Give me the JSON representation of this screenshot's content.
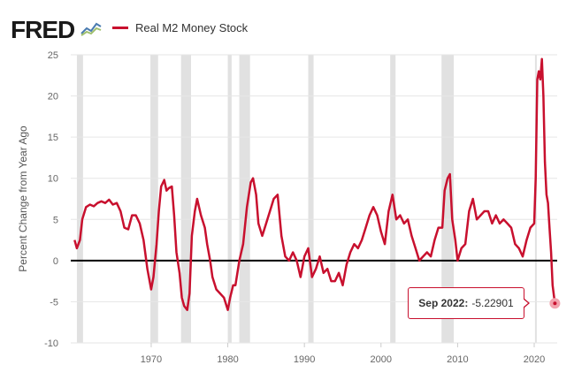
{
  "header": {
    "logo_text": "FRED"
  },
  "legend": {
    "label": "Real M2 Money Stock",
    "color": "#c8102e"
  },
  "tooltip": {
    "date": "Sep 2022:",
    "value": "-5.22901"
  },
  "chart_data": {
    "type": "line",
    "ylabel": "Percent Change from Year Ago",
    "xlim": [
      1959.5,
      2023.0
    ],
    "ylim": [
      -10,
      25
    ],
    "yticks": [
      -10,
      -5,
      0,
      5,
      10,
      15,
      20,
      25
    ],
    "xticks": [
      1970,
      1980,
      1990,
      2000,
      2010,
      2020
    ],
    "grid": true,
    "zero_line": true,
    "recessions": [
      [
        1960.3,
        1961.1
      ],
      [
        1969.9,
        1970.9
      ],
      [
        1973.9,
        1975.2
      ],
      [
        1980.0,
        1980.5
      ],
      [
        1981.5,
        1982.9
      ],
      [
        1990.5,
        1991.2
      ],
      [
        2001.2,
        2001.9
      ],
      [
        2007.9,
        2009.5
      ],
      [
        2020.1,
        2020.3
      ]
    ],
    "series": [
      {
        "name": "Real M2 Money Stock",
        "color": "#c8102e",
        "x": [
          1960.0,
          1960.3,
          1960.7,
          1961.0,
          1961.5,
          1962.0,
          1962.5,
          1963.0,
          1963.5,
          1964.0,
          1964.5,
          1965.0,
          1965.5,
          1966.0,
          1966.5,
          1967.0,
          1967.5,
          1968.0,
          1968.5,
          1969.0,
          1969.5,
          1970.0,
          1970.3,
          1970.7,
          1971.0,
          1971.3,
          1971.7,
          1972.0,
          1972.3,
          1972.7,
          1973.0,
          1973.3,
          1973.7,
          1974.0,
          1974.3,
          1974.7,
          1975.0,
          1975.3,
          1975.7,
          1976.0,
          1976.5,
          1977.0,
          1977.3,
          1977.7,
          1978.0,
          1978.5,
          1979.0,
          1979.5,
          1980.0,
          1980.3,
          1980.7,
          1981.0,
          1981.5,
          1982.0,
          1982.5,
          1983.0,
          1983.3,
          1983.7,
          1984.0,
          1984.5,
          1985.0,
          1985.5,
          1986.0,
          1986.5,
          1987.0,
          1987.5,
          1988.0,
          1988.5,
          1989.0,
          1989.5,
          1990.0,
          1990.5,
          1991.0,
          1991.5,
          1992.0,
          1992.5,
          1993.0,
          1993.5,
          1994.0,
          1994.5,
          1995.0,
          1995.5,
          1996.0,
          1996.5,
          1997.0,
          1997.5,
          1998.0,
          1998.5,
          1999.0,
          1999.5,
          2000.0,
          2000.5,
          2001.0,
          2001.5,
          2002.0,
          2002.5,
          2003.0,
          2003.5,
          2004.0,
          2004.5,
          2005.0,
          2005.5,
          2006.0,
          2006.5,
          2007.0,
          2007.5,
          2008.0,
          2008.3,
          2008.7,
          2009.0,
          2009.3,
          2009.7,
          2010.0,
          2010.5,
          2011.0,
          2011.5,
          2012.0,
          2012.5,
          2013.0,
          2013.5,
          2014.0,
          2014.5,
          2015.0,
          2015.5,
          2016.0,
          2016.5,
          2017.0,
          2017.5,
          2018.0,
          2018.5,
          2019.0,
          2019.5,
          2020.0,
          2020.2,
          2020.4,
          2020.6,
          2020.8,
          2021.0,
          2021.2,
          2021.4,
          2021.6,
          2021.8,
          2022.0,
          2022.2,
          2022.4,
          2022.7
        ],
        "values": [
          2.5,
          1.5,
          2.5,
          5.0,
          6.5,
          6.8,
          6.6,
          7.0,
          7.2,
          7.0,
          7.4,
          6.8,
          7.0,
          6.0,
          4.0,
          3.8,
          5.5,
          5.5,
          4.5,
          2.5,
          -1.0,
          -3.5,
          -2.0,
          2.0,
          6.0,
          9.0,
          9.8,
          8.5,
          8.8,
          9.0,
          5.5,
          1.0,
          -1.5,
          -4.5,
          -5.5,
          -6.0,
          -4.0,
          3.0,
          6.0,
          7.5,
          5.5,
          4.0,
          2.0,
          0.0,
          -2.0,
          -3.5,
          -4.0,
          -4.5,
          -6.0,
          -4.5,
          -3.0,
          -3.0,
          0.0,
          2.0,
          6.5,
          9.5,
          10.0,
          8.0,
          4.5,
          3.0,
          4.5,
          6.0,
          7.5,
          8.0,
          3.0,
          0.5,
          0.0,
          1.0,
          0.0,
          -2.0,
          0.5,
          1.5,
          -2.0,
          -1.0,
          0.5,
          -1.5,
          -1.0,
          -2.5,
          -2.5,
          -1.5,
          -3.0,
          -0.5,
          1.0,
          2.0,
          1.5,
          2.5,
          4.0,
          5.5,
          6.5,
          5.5,
          3.5,
          2.0,
          6.0,
          8.0,
          5.0,
          5.5,
          4.5,
          5.0,
          3.0,
          1.5,
          0.0,
          0.5,
          1.0,
          0.5,
          2.5,
          4.0,
          4.0,
          8.5,
          10.0,
          10.5,
          5.0,
          2.5,
          0.0,
          1.5,
          2.0,
          6.0,
          7.5,
          5.0,
          5.5,
          6.0,
          6.0,
          4.5,
          5.5,
          4.5,
          5.0,
          4.5,
          4.0,
          2.0,
          1.5,
          0.5,
          2.5,
          4.0,
          4.5,
          10.0,
          22.0,
          23.0,
          22.0,
          24.5,
          20.0,
          12.0,
          8.0,
          7.0,
          4.0,
          1.0,
          -3.0,
          -5.2
        ]
      }
    ]
  }
}
